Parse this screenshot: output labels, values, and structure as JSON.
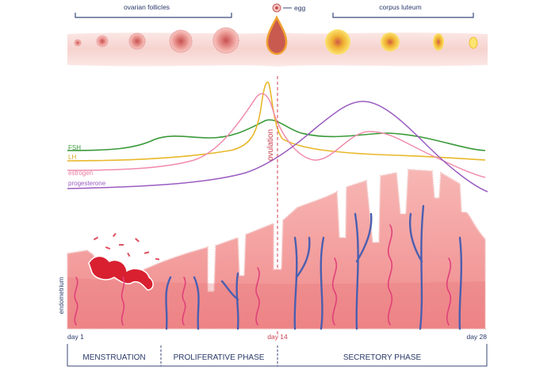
{
  "top": {
    "ovarian_follicles": "ovarian follicles",
    "egg": "egg",
    "corpus_luteum": "corpus luteum"
  },
  "hormones": {
    "fsh": "FSH",
    "lh": "LH",
    "estrogen": "estrogen",
    "progesterone": "progesterone",
    "ovulation": "ovulation"
  },
  "hormone_colors": {
    "fsh": "#3a9a3a",
    "lh": "#e8b82a",
    "estrogen": "#f08cac",
    "progesterone": "#9a5cc0"
  },
  "endometrium_label": "endometrium",
  "days": {
    "start": "day 1",
    "mid": "day 14",
    "end": "day 28"
  },
  "phases": {
    "menstruation": "MENSTRUATION",
    "proliferative": "PROLIFERATIVE PHASE",
    "secretory": "SECRETORY PHASE"
  },
  "colors": {
    "bracket": "#3a4a7a",
    "ovulation_line": "#d04050",
    "tissue": "#f0a0a0",
    "vein": "#4a5fb0",
    "artery": "#e0407a"
  }
}
